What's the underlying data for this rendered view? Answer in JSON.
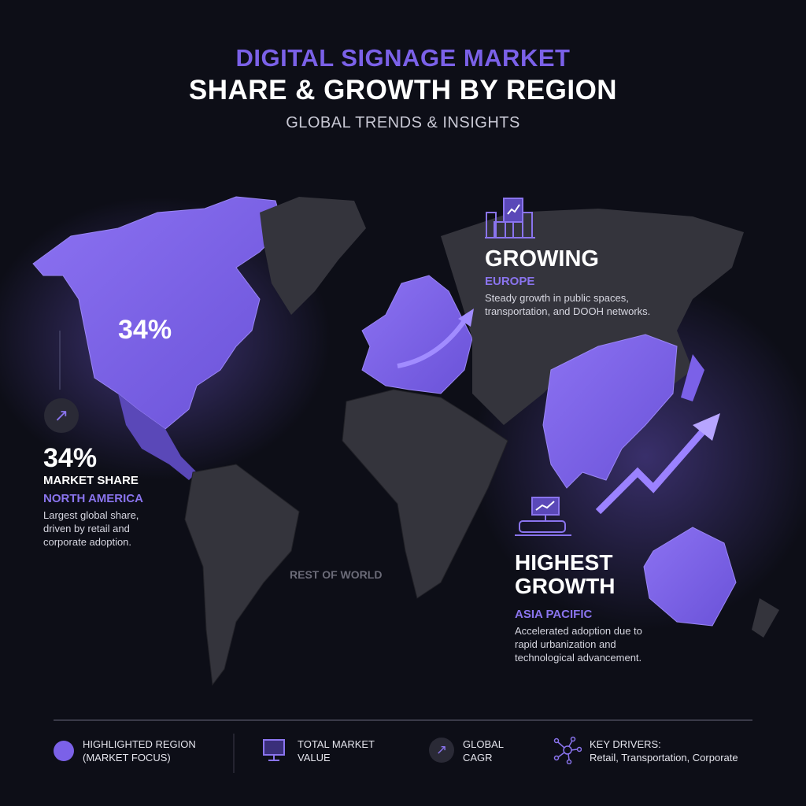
{
  "header": {
    "title_line1": "DIGITAL SIGNAGE MARKET",
    "title_line2": "SHARE & GROWTH BY REGION",
    "subtitle": "GLOBAL TRENDS & INSIGHTS"
  },
  "map": {
    "north_america_label": "34%",
    "rest_of_world_label": "REST OF WORLD",
    "highlight_color": "#7b61e8",
    "land_color": "#34343c"
  },
  "north_america": {
    "icon": "arrow-up-right-icon",
    "value": "34%",
    "metric": "MARKET SHARE",
    "region": "NORTH AMERICA",
    "description_lines": [
      "Largest global share,",
      "driven by retail and",
      "corporate adoption."
    ]
  },
  "europe": {
    "icon": "city-billboard-icon",
    "headline": "GROWING",
    "region": "EUROPE",
    "description_lines": [
      "Steady growth in public spaces,",
      "transportation, and DOOH networks."
    ]
  },
  "asia_pacific": {
    "icon": "train-billboard-icon",
    "headline_line1": "HIGHEST",
    "headline_line2": "GROWTH",
    "region": "ASIA PACIFIC",
    "description_lines": [
      "Accelerated adoption due to",
      "rapid urbanization and",
      "technological advancement."
    ]
  },
  "legend": [
    {
      "icon": "purple-circle-icon",
      "lines": [
        "HIGHLIGHTED REGION",
        "(MARKET FOCUS)"
      ]
    },
    {
      "icon": "monitor-icon",
      "lines": [
        "TOTAL MARKET",
        "VALUE"
      ]
    },
    {
      "icon": "arrow-up-right-icon",
      "lines": [
        "GLOBAL",
        "CAGR"
      ]
    },
    {
      "icon": "network-icon",
      "lines": [
        "KEY DRIVERS:",
        "Retail, Transportation, Corporate"
      ]
    }
  ]
}
